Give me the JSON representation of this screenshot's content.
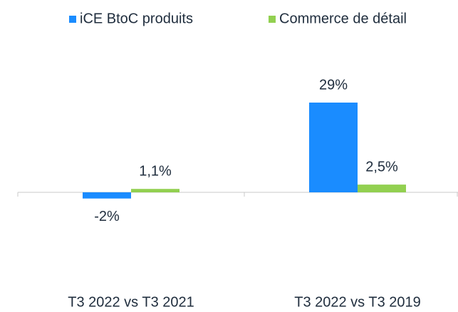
{
  "chart_data": {
    "type": "bar",
    "categories": [
      "T3 2022 vs T3 2021",
      "T3 2022 vs T3 2019"
    ],
    "series": [
      {
        "name": "iCE BtoC produits",
        "color": "#1a8cff",
        "values": [
          -2,
          29
        ],
        "value_labels": [
          "-2%",
          "29%"
        ]
      },
      {
        "name": "Commerce de détail",
        "color": "#92d050",
        "values": [
          1.1,
          2.5
        ],
        "value_labels": [
          "1,1%",
          "2,5%"
        ]
      }
    ],
    "legend": "top"
  }
}
